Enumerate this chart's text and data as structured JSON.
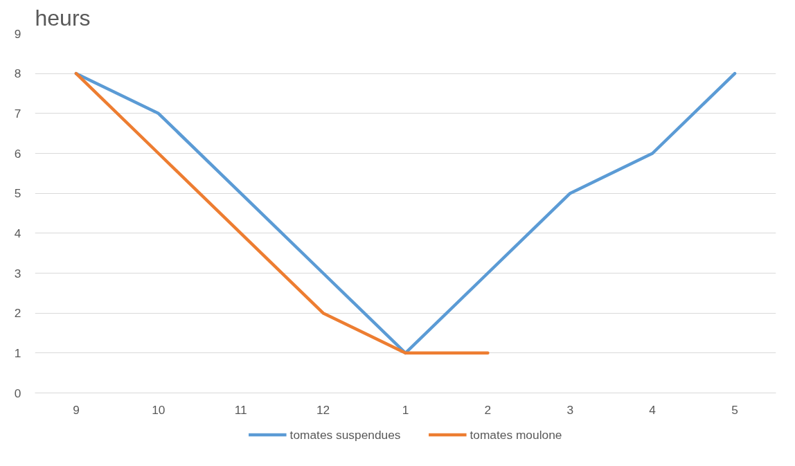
{
  "chart_data": {
    "type": "line",
    "ylabel": "heurs",
    "categories": [
      "9",
      "10",
      "11",
      "12",
      "1",
      "2",
      "3",
      "4",
      "5"
    ],
    "series": [
      {
        "name": "tomates suspendues",
        "color": "#5b9bd5",
        "values": [
          8,
          7,
          5,
          3,
          1,
          3,
          5,
          6,
          8
        ]
      },
      {
        "name": "tomates moulone",
        "color": "#ed7d31",
        "values": [
          8,
          6,
          4,
          2,
          1,
          1,
          null,
          null,
          null
        ]
      }
    ],
    "ylim": [
      0,
      9
    ],
    "yticks": [
      0,
      1,
      2,
      3,
      4,
      5,
      6,
      7,
      8,
      9
    ],
    "grid": "y",
    "legend": "bottom",
    "marker": "none",
    "line_style": "solid"
  }
}
